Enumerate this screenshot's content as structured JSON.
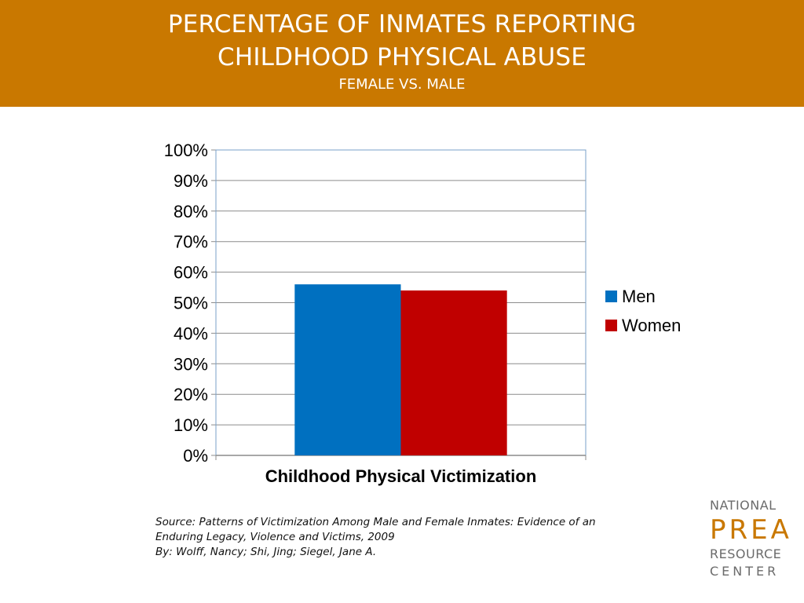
{
  "header": {
    "title_line1": "PERCENTAGE OF INMATES REPORTING",
    "title_line2": "CHILDHOOD PHYSICAL ABUSE",
    "subtitle": "FEMALE VS. MALE"
  },
  "colors": {
    "header_bg": "#C97800",
    "men": "#0070C0",
    "women": "#C00000"
  },
  "chart_data": {
    "type": "bar",
    "categories": [
      "Childhood Physical Victimization"
    ],
    "series": [
      {
        "name": "Men",
        "values": [
          0.56
        ]
      },
      {
        "name": "Women",
        "values": [
          0.54
        ]
      }
    ],
    "xlabel": "Childhood Physical Victimization",
    "ylabel": "",
    "ylim": [
      0,
      1
    ],
    "yticks": [
      "0%",
      "10%",
      "20%",
      "30%",
      "40%",
      "50%",
      "60%",
      "70%",
      "80%",
      "90%",
      "100%"
    ],
    "grid": true,
    "legend": "right"
  },
  "source": {
    "line1": "Source: Patterns of Victimization Among Male and Female Inmates: Evidence of an",
    "line2": "Enduring Legacy, Violence and Victims, 2009",
    "line3": "By: Wolff, Nancy; Shi, Jing; Siegel, Jane A."
  },
  "logo": {
    "line1": "NATIONAL",
    "line2": "PREA",
    "line3": "RESOURCE",
    "line4": "CENTER"
  }
}
